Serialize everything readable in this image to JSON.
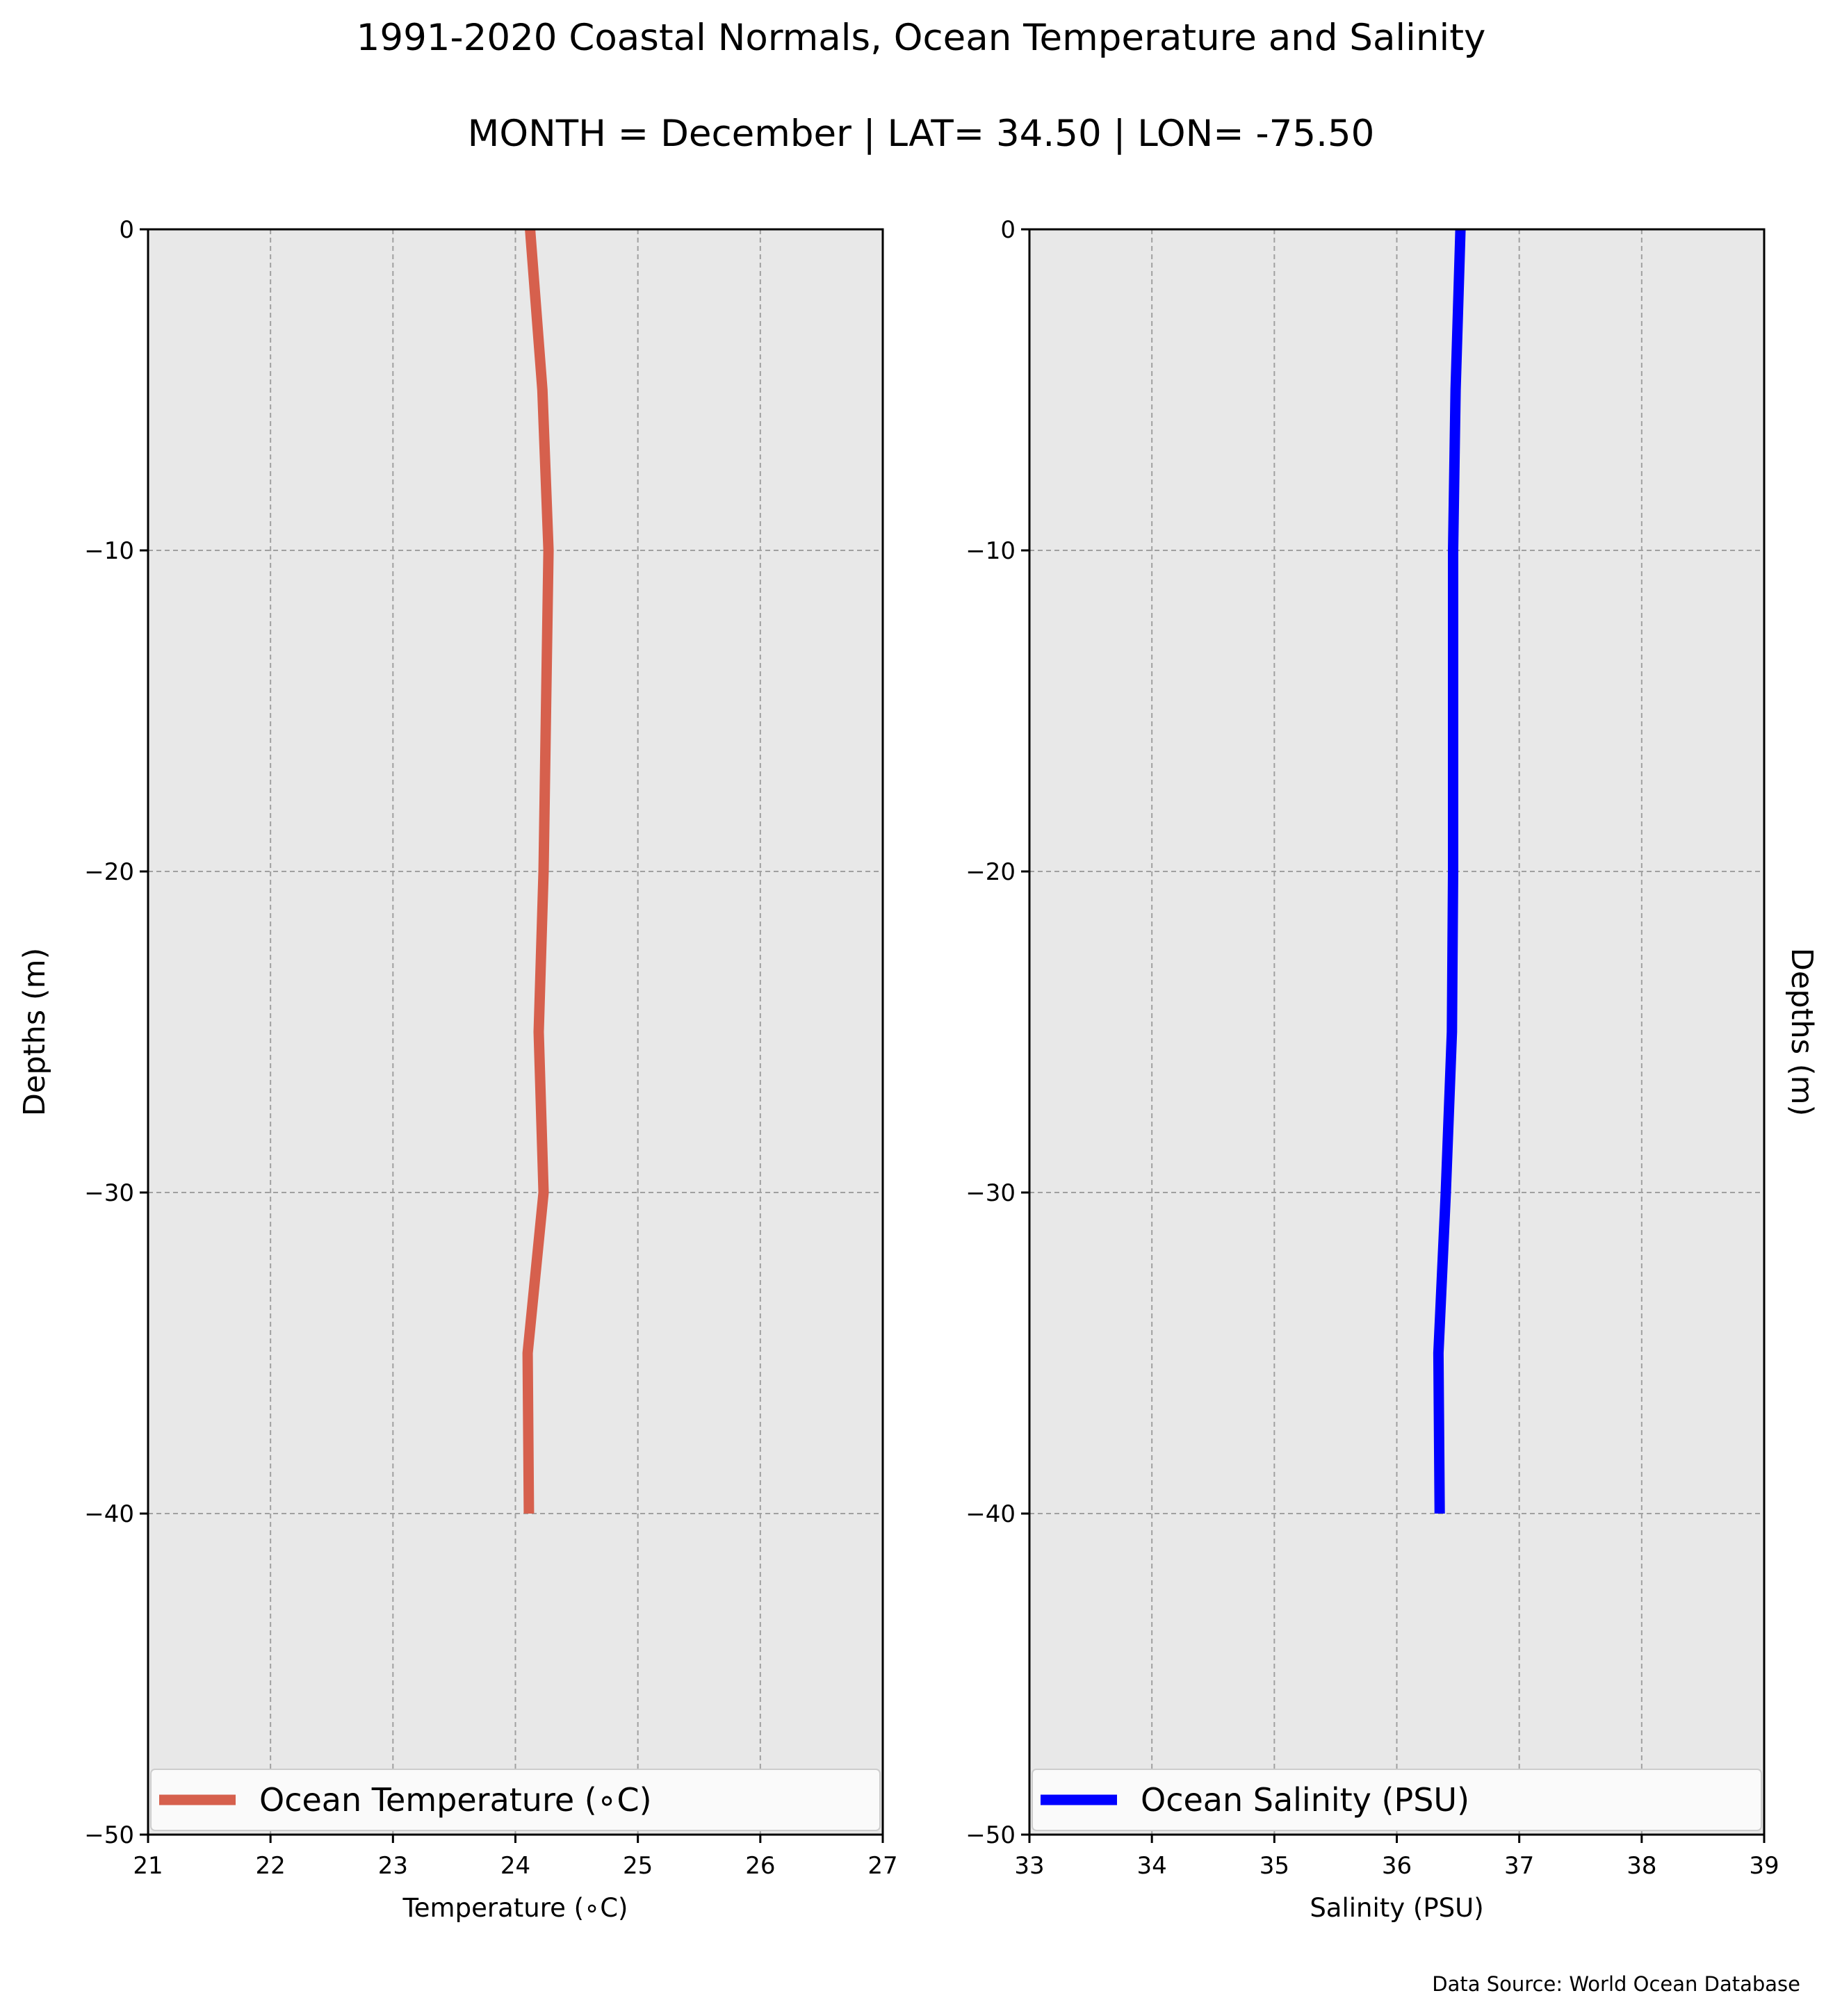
{
  "title": "1991-2020 Coastal Normals, Ocean Temperature and Salinity",
  "subtitle": "MONTH = December | LAT= 34.50 | LON= -75.50",
  "source": "Data Source: World Ocean Database",
  "chart_data": [
    {
      "type": "line",
      "series": [
        {
          "name": "Ocean Temperature (∘C)",
          "color": "#d6604d",
          "x": [
            24.12,
            24.22,
            24.27,
            24.25,
            24.23,
            24.19,
            24.23,
            24.1,
            24.11
          ],
          "y": [
            0,
            -5,
            -10,
            -15,
            -20,
            -25,
            -30,
            -35,
            -40
          ]
        }
      ],
      "xlabel": "Temperature (∘C)",
      "ylabel": "Depths (m)",
      "xlim": [
        21,
        27
      ],
      "ylim": [
        -50,
        0
      ],
      "xticks": [
        "21",
        "22",
        "23",
        "24",
        "25",
        "26",
        "27"
      ],
      "yticks": [
        "0",
        "−10",
        "−20",
        "−30",
        "−40",
        "−50"
      ],
      "grid": true,
      "legend": "lower-center"
    },
    {
      "type": "line",
      "series": [
        {
          "name": "Ocean Salinity (PSU)",
          "color": "#0000ff",
          "x": [
            36.52,
            36.48,
            36.46,
            36.46,
            36.46,
            36.45,
            36.4,
            36.34,
            36.35
          ],
          "y": [
            0,
            -5,
            -10,
            -15,
            -20,
            -25,
            -30,
            -35,
            -40
          ]
        }
      ],
      "xlabel": "Salinity (PSU)",
      "ylabel": "Depths (m)",
      "xlim": [
        33,
        39
      ],
      "ylim": [
        -50,
        0
      ],
      "xticks": [
        "33",
        "34",
        "35",
        "36",
        "37",
        "38",
        "39"
      ],
      "yticks": [
        "0",
        "−10",
        "−20",
        "−30",
        "−40",
        "−50"
      ],
      "grid": true,
      "legend": "lower-center"
    }
  ]
}
